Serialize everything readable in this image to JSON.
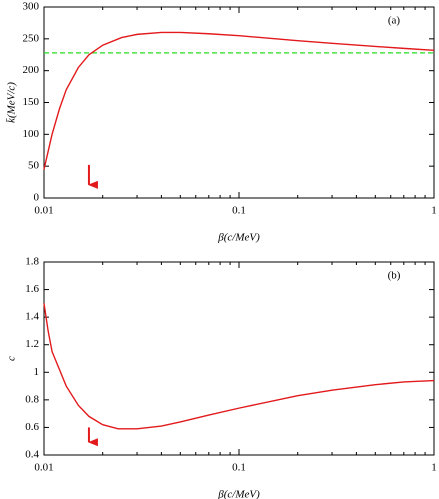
{
  "chart_data": [
    {
      "type": "line",
      "annotation": "(a)",
      "xlabel": "β(c/MeV)",
      "ylabel": "k̄(MeV/c)",
      "log_x": true,
      "xlim": [
        0.01,
        1
      ],
      "xticks": [
        0.01,
        0.1,
        1
      ],
      "ylim": [
        0,
        300
      ],
      "yticks": [
        0,
        50,
        100,
        150,
        200,
        250,
        300
      ],
      "x": [
        0.01,
        0.011,
        0.012,
        0.013,
        0.015,
        0.017,
        0.02,
        0.025,
        0.03,
        0.04,
        0.05,
        0.07,
        0.1,
        0.2,
        0.3,
        0.5,
        0.7,
        1
      ],
      "series": [
        {
          "color": "#e31a1c",
          "values": [
            45,
            100,
            140,
            170,
            205,
            225,
            240,
            252,
            257,
            260,
            260,
            258,
            255,
            247,
            243,
            238,
            235,
            232
          ]
        }
      ],
      "hline": {
        "y": 228,
        "color": "#22dd22",
        "style": "dashed"
      },
      "arrow": {
        "x": 0.017,
        "y_from": 52,
        "y_to": 5,
        "color": "#e31a1c"
      }
    },
    {
      "type": "line",
      "annotation": "(b)",
      "xlabel": "β(c/MeV)",
      "ylabel": "c",
      "log_x": true,
      "xlim": [
        0.01,
        1
      ],
      "xticks": [
        0.01,
        0.1,
        1
      ],
      "ylim": [
        0.4,
        1.8
      ],
      "yticks": [
        0.4,
        0.6,
        0.8,
        1,
        1.2,
        1.4,
        1.6,
        1.8
      ],
      "x": [
        0.01,
        0.0105,
        0.011,
        0.012,
        0.013,
        0.015,
        0.017,
        0.02,
        0.024,
        0.03,
        0.04,
        0.05,
        0.07,
        0.1,
        0.2,
        0.3,
        0.5,
        0.7,
        1
      ],
      "series": [
        {
          "color": "#e31a1c",
          "values": [
            1.5,
            1.3,
            1.15,
            1.02,
            0.9,
            0.76,
            0.68,
            0.62,
            0.59,
            0.59,
            0.61,
            0.64,
            0.69,
            0.74,
            0.83,
            0.87,
            0.91,
            0.93,
            0.94
          ]
        }
      ],
      "arrow": {
        "x": 0.017,
        "y_from": 0.6,
        "y_to": 0.42,
        "color": "#e31a1c"
      }
    }
  ]
}
